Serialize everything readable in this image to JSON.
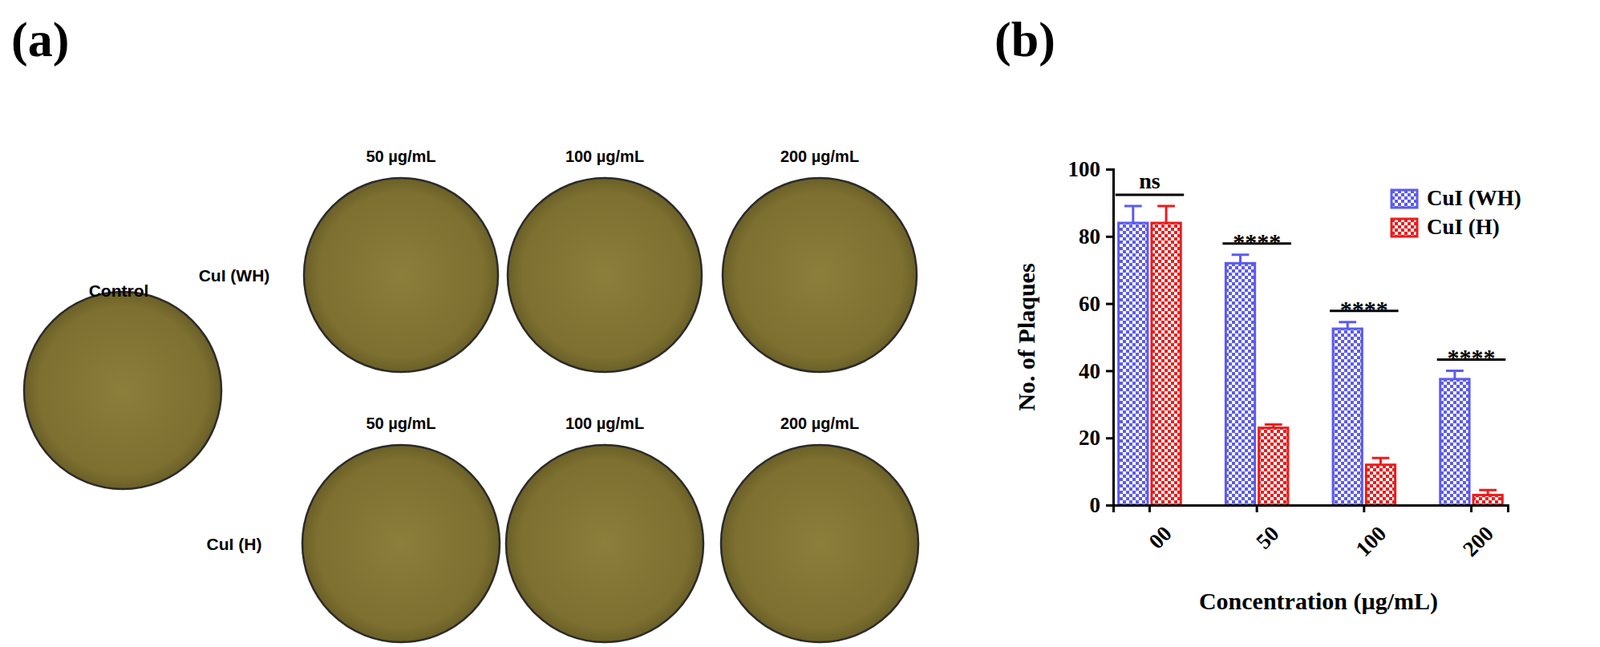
{
  "panel_a": {
    "label": "(a)",
    "control": "Control",
    "rows": [
      {
        "label": "CuI (WH)",
        "dishes": [
          "50 µg/mL",
          "100 µg/mL",
          "200 µg/mL"
        ]
      },
      {
        "label": "CuI (H)",
        "dishes": [
          "50 µg/mL",
          "100 µg/mL",
          "200 µg/mL"
        ]
      }
    ]
  },
  "panel_b": {
    "label": "(b)"
  },
  "chart_data": {
    "type": "bar",
    "x_label": "Concentration (µg/mL)",
    "y_label": "No. of Plaques",
    "categories": [
      "00",
      "50",
      "100",
      "200"
    ],
    "series": [
      {
        "name": "CuI (WH)",
        "color": "#5b5bef",
        "values": [
          84,
          72,
          52.5,
          37.5
        ],
        "errors": [
          5,
          2.5,
          2,
          2.5
        ]
      },
      {
        "name": "CuI (H)",
        "color": "#ec1c1c",
        "values": [
          84,
          23,
          12,
          3
        ],
        "errors": [
          5,
          1,
          2,
          1.5
        ]
      }
    ],
    "annotations": [
      "ns",
      "****",
      "****",
      "****"
    ],
    "ylim": [
      0,
      100
    ],
    "yticks": [
      0,
      20,
      40,
      60,
      80,
      100
    ],
    "legend": "upper right",
    "grid": false
  }
}
